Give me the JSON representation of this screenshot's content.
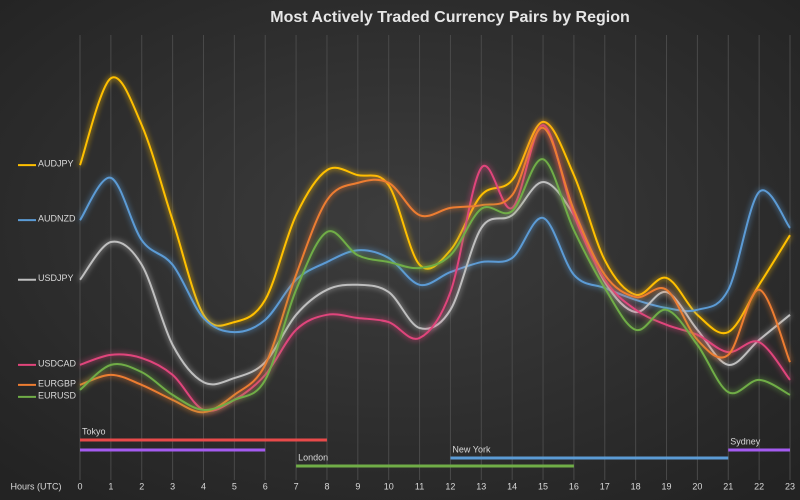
{
  "chart_data": {
    "type": "line",
    "title": "Most Actively Traded Currency Pairs by Region",
    "x_label": "Hours (UTC)",
    "x": [
      0,
      1,
      2,
      3,
      4,
      5,
      6,
      7,
      8,
      9,
      10,
      11,
      12,
      13,
      14,
      15,
      16,
      17,
      18,
      19,
      20,
      21,
      22,
      23
    ],
    "xlim": [
      0,
      23
    ],
    "xticks": [
      0,
      1,
      2,
      3,
      4,
      5,
      6,
      7,
      8,
      9,
      10,
      11,
      12,
      13,
      14,
      15,
      16,
      17,
      18,
      19,
      20,
      21,
      22,
      23
    ],
    "ylim": [
      0,
      100
    ],
    "grid": true,
    "smooth": true,
    "series": [
      {
        "name": "AUDJPY",
        "color": "#ffc000",
        "values": [
          71.4,
          90.5,
          80.2,
          59.3,
          38.5,
          36.9,
          41.8,
          60.4,
          70.3,
          69.2,
          67.0,
          49.5,
          52.7,
          64.8,
          68.1,
          80.9,
          69.2,
          50.5,
          42.9,
          46.6,
          38.5,
          34.7,
          45.1,
          56.0
        ]
      },
      {
        "name": "AUDNZD",
        "color": "#5b9bd5",
        "values": [
          59.3,
          68.6,
          54.9,
          49.5,
          37.8,
          34.7,
          37.4,
          46.2,
          50.1,
          52.7,
          51.0,
          45.1,
          47.9,
          50.1,
          51.0,
          59.8,
          47.3,
          44.4,
          41.8,
          40.0,
          39.6,
          44.0,
          65.5,
          57.6
        ]
      },
      {
        "name": "USDJPY",
        "color": "#bfbfbf",
        "values": [
          46.2,
          54.5,
          49.5,
          31.9,
          23.7,
          24.6,
          28.1,
          38.5,
          44.0,
          45.1,
          43.5,
          35.6,
          39.6,
          57.6,
          60.4,
          67.7,
          60.4,
          45.7,
          39.1,
          43.5,
          35.2,
          27.5,
          33.0,
          38.5
        ]
      },
      {
        "name": "USDCAD",
        "color": "#e0457b",
        "values": [
          27.5,
          29.7,
          29.0,
          25.3,
          17.6,
          19.8,
          25.3,
          35.2,
          38.5,
          37.8,
          36.9,
          33.4,
          43.5,
          70.8,
          62.0,
          80.2,
          60.4,
          46.2,
          39.6,
          36.3,
          34.1,
          30.3,
          32.5,
          24.2
        ]
      },
      {
        "name": "EURGBP",
        "color": "#ed7d31",
        "values": [
          23.1,
          25.3,
          23.1,
          19.8,
          17.1,
          20.9,
          27.5,
          47.3,
          63.7,
          67.5,
          67.5,
          60.4,
          62.0,
          62.6,
          64.8,
          79.6,
          61.5,
          47.3,
          42.4,
          44.0,
          33.0,
          29.7,
          44.0,
          28.1
        ]
      },
      {
        "name": "EURUSD",
        "color": "#70ad47",
        "values": [
          22.0,
          27.5,
          25.9,
          20.9,
          17.6,
          19.8,
          24.2,
          44.0,
          56.7,
          51.6,
          50.1,
          48.8,
          51.6,
          61.8,
          61.3,
          72.7,
          57.1,
          44.4,
          35.2,
          39.6,
          31.9,
          21.5,
          24.2,
          20.9
        ]
      }
    ],
    "sessions": [
      {
        "name": "Tokyo",
        "color": "#e84a4a",
        "ranges": [
          [
            0,
            8
          ]
        ]
      },
      {
        "name": "Sydney",
        "color": "#a45bf0",
        "ranges": [
          [
            0,
            6
          ],
          [
            21,
            23
          ]
        ]
      },
      {
        "name": "New York",
        "color": "#5b9bd5",
        "ranges": [
          [
            12,
            21
          ]
        ]
      },
      {
        "name": "London",
        "color": "#70ad47",
        "ranges": [
          [
            7,
            16
          ]
        ]
      }
    ]
  }
}
